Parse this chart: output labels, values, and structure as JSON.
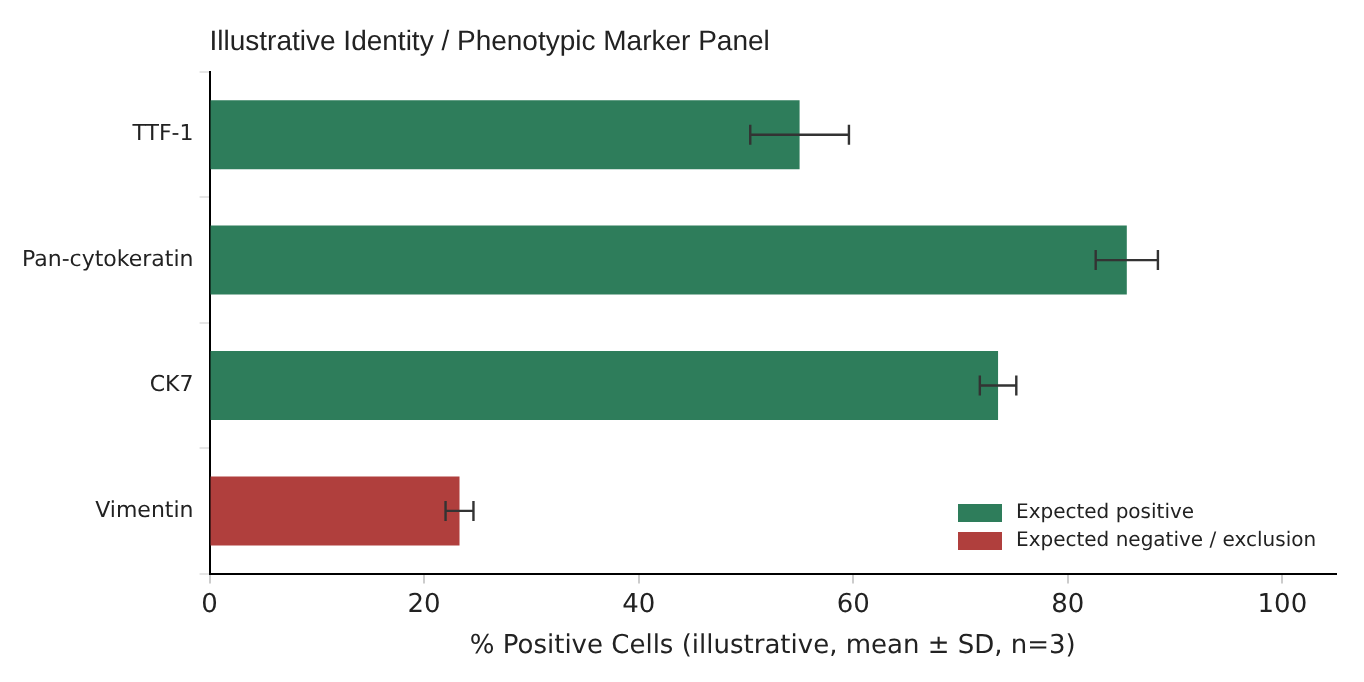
{
  "chart_data": {
    "type": "bar",
    "orientation": "horizontal",
    "stacked": true,
    "title": "Illustrative Identity / Phenotypic Marker Panel",
    "xlabel": "% Positive Cells (illustrative, mean ± SD, n=3)",
    "categories": [
      "TTF-1",
      "Pan-cytokeratin",
      "CK7",
      "Vimentin"
    ],
    "series": [
      {
        "name": "Expected positive",
        "color": "#2e7d5b",
        "values": [
          55,
          85.5,
          73.5,
          null
        ],
        "errors": [
          4.6,
          2.9,
          1.7,
          null
        ]
      },
      {
        "name": "Expected negative / exclusion",
        "color": "#b03f3d",
        "values": [
          null,
          null,
          null,
          23.3
        ],
        "errors": [
          null,
          null,
          null,
          1.3
        ]
      }
    ],
    "xlim": [
      0,
      105
    ],
    "xticks": [
      0,
      20,
      40,
      60,
      80,
      100
    ],
    "grid": false,
    "legend": "bottom right"
  }
}
